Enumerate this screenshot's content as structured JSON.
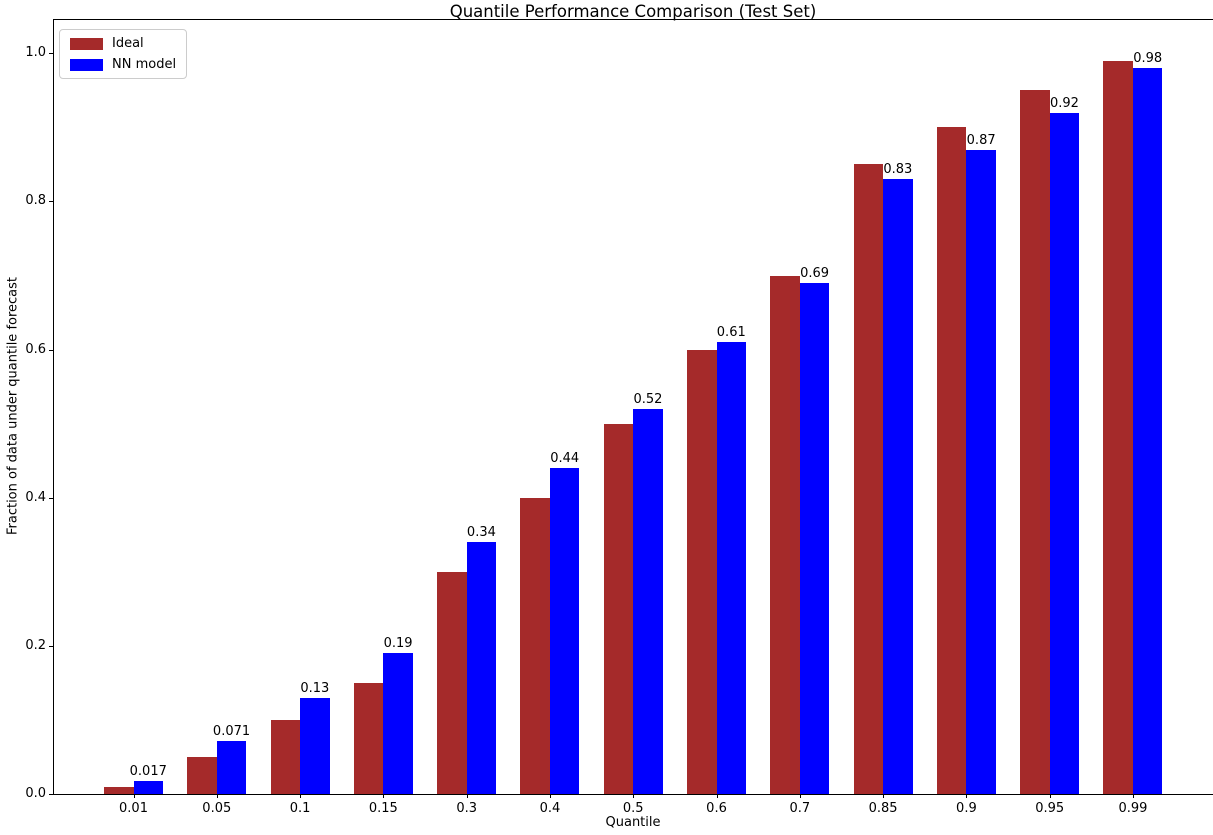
{
  "figure": {
    "title": "Quantile Performance Comparison (Test Set)",
    "xlabel": "Quantile",
    "ylabel": "Fraction of data under quantile forecast"
  },
  "legend": {
    "items": [
      {
        "label": "Ideal",
        "color": "#a52a2a"
      },
      {
        "label": "NN model",
        "color": "#0000ff"
      }
    ]
  },
  "chart_data": {
    "type": "bar",
    "title": "Quantile Performance Comparison (Test Set)",
    "xlabel": "Quantile",
    "ylabel": "Fraction of data under quantile forecast",
    "categories": [
      "0.01",
      "0.05",
      "0.1",
      "0.15",
      "0.3",
      "0.4",
      "0.5",
      "0.6",
      "0.7",
      "0.85",
      "0.9",
      "0.95",
      "0.99"
    ],
    "series": [
      {
        "name": "Ideal",
        "color": "#a52a2a",
        "values": [
          0.01,
          0.05,
          0.1,
          0.15,
          0.3,
          0.4,
          0.5,
          0.6,
          0.7,
          0.85,
          0.9,
          0.95,
          0.99
        ]
      },
      {
        "name": "NN model",
        "color": "#0000ff",
        "values": [
          0.017,
          0.071,
          0.13,
          0.19,
          0.34,
          0.44,
          0.52,
          0.61,
          0.69,
          0.83,
          0.87,
          0.92,
          0.98
        ]
      }
    ],
    "bar_labels": [
      "0.017",
      "0.071",
      "0.13",
      "0.19",
      "0.34",
      "0.44",
      "0.52",
      "0.61",
      "0.69",
      "0.83",
      "0.87",
      "0.92",
      "0.98"
    ],
    "yticks": [
      "0.0",
      "0.2",
      "0.4",
      "0.6",
      "0.8",
      "1.0"
    ],
    "ylim": [
      0,
      1.045
    ],
    "grid": false,
    "legend_position": "upper left"
  }
}
